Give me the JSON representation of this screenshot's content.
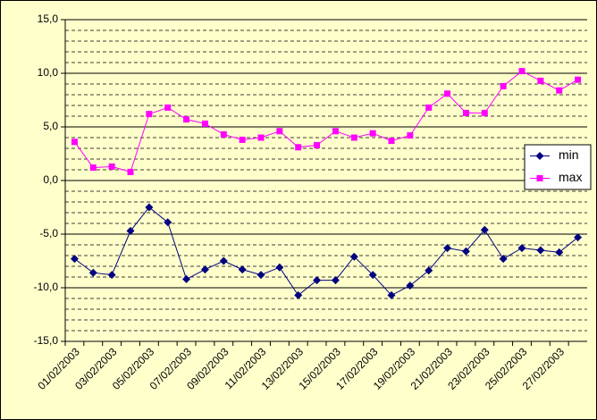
{
  "chart_data": {
    "type": "line",
    "categories": [
      "01/02/2003",
      null,
      "03/02/2003",
      null,
      "05/02/2003",
      null,
      "07/02/2003",
      null,
      "09/02/2003",
      null,
      "11/02/2003",
      null,
      "13/02/2003",
      null,
      "15/02/2003",
      null,
      "17/02/2003",
      null,
      "19/02/2003",
      null,
      "21/02/2003",
      null,
      "23/02/2003",
      null,
      "25/02/2003",
      null,
      "27/02/2003",
      null
    ],
    "series": [
      {
        "name": "min",
        "color": "#000080",
        "marker": "diamond",
        "values": [
          -7.3,
          -8.6,
          -8.8,
          -4.7,
          -2.5,
          -3.9,
          -9.2,
          -8.3,
          -7.5,
          -8.3,
          -8.8,
          -8.1,
          -10.7,
          -9.3,
          -9.3,
          -7.1,
          -8.8,
          -10.7,
          -9.8,
          -8.4,
          -6.3,
          -6.6,
          -4.6,
          -7.3,
          -6.3,
          -6.5,
          -6.7,
          -5.3
        ]
      },
      {
        "name": "max",
        "color": "#FF00FF",
        "marker": "square",
        "values": [
          3.6,
          1.2,
          1.3,
          0.8,
          6.2,
          6.8,
          5.7,
          5.3,
          4.3,
          3.8,
          4.0,
          4.6,
          3.1,
          3.3,
          4.6,
          4.0,
          4.4,
          3.7,
          4.2,
          6.8,
          8.1,
          6.3,
          6.3,
          8.8,
          10.2,
          9.3,
          8.4,
          9.4
        ]
      }
    ],
    "ylim": [
      -15,
      15
    ],
    "yticks": [
      {
        "value": -15,
        "label": "-15,0"
      },
      {
        "value": -10,
        "label": "-10,0"
      },
      {
        "value": -5,
        "label": "-5,0"
      },
      {
        "value": 0,
        "label": "0,0"
      },
      {
        "value": 5,
        "label": "5,0"
      },
      {
        "value": 10,
        "label": "10,0"
      },
      {
        "value": 15,
        "label": "15,0"
      }
    ],
    "minor_yticks": [
      -14,
      -13,
      -12,
      -11,
      -9,
      -8,
      -7,
      -6,
      -4,
      -3,
      -2,
      -1,
      1,
      2,
      3,
      4,
      6,
      7,
      8,
      9,
      11,
      12,
      13,
      14
    ],
    "grid": true,
    "legend": "right"
  }
}
